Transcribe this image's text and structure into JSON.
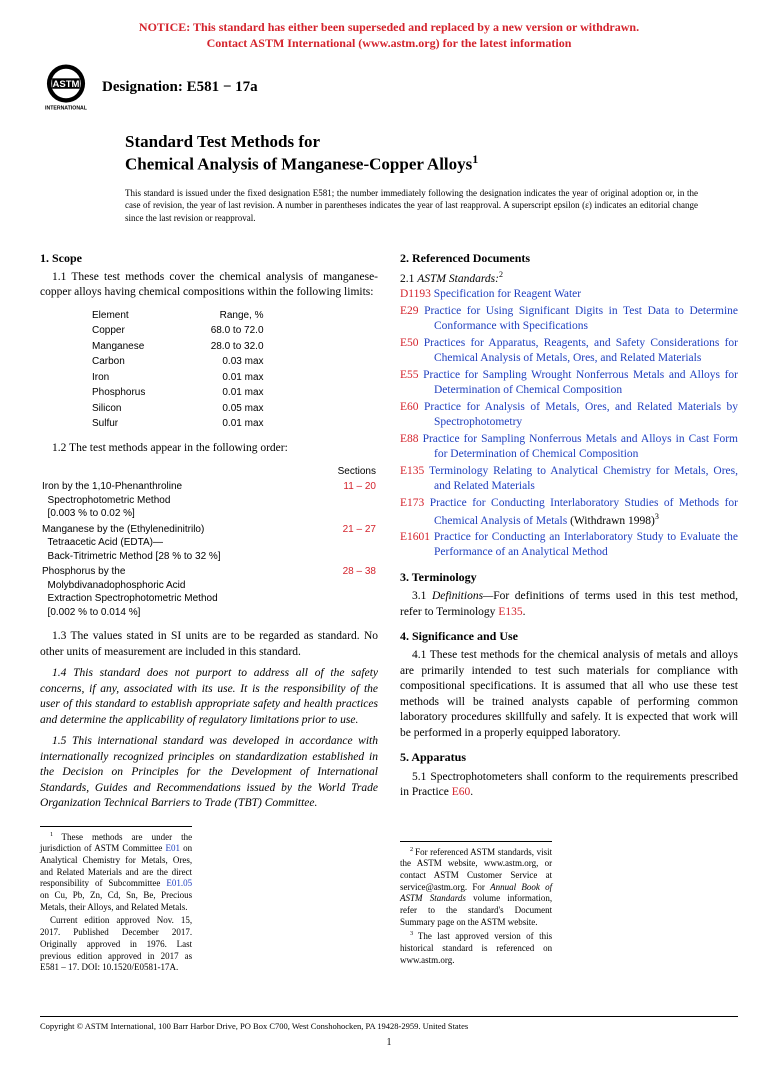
{
  "notice": {
    "line1": "NOTICE: This standard has either been superseded and replaced by a new version or withdrawn.",
    "line2": "Contact ASTM International (www.astm.org) for the latest information",
    "color": "#d4232c"
  },
  "logo": {
    "top_text": "ASTM",
    "bottom_text": "INTERNATIONAL"
  },
  "designation": "Designation: E581 − 17a",
  "title": {
    "line1": "Standard Test Methods for",
    "line2": "Chemical Analysis of Manganese-Copper Alloys",
    "sup": "1"
  },
  "issue_note": "This standard is issued under the fixed designation E581; the number immediately following the designation indicates the year of original adoption or, in the case of revision, the year of last revision. A number in parentheses indicates the year of last reapproval. A superscript epsilon (ε) indicates an editorial change since the last revision or reapproval.",
  "scope": {
    "head": "1. Scope",
    "p1_1": "1.1 These test methods cover the chemical analysis of manganese-copper alloys having chemical compositions within the following limits:",
    "elements_header": {
      "el": "Element",
      "range": "Range, %"
    },
    "elements": [
      {
        "el": "Copper",
        "range": "68.0 to 72.0"
      },
      {
        "el": "Manganese",
        "range": "28.0 to 32.0"
      },
      {
        "el": "Carbon",
        "range": "0.03 max"
      },
      {
        "el": "Iron",
        "range": "0.01 max"
      },
      {
        "el": "Phosphorus",
        "range": "0.01 max"
      },
      {
        "el": "Silicon",
        "range": "0.05 max"
      },
      {
        "el": "Sulfur",
        "range": "0.01 max"
      }
    ],
    "p1_2": "1.2 The test methods appear in the following order:",
    "methods_header": "Sections",
    "methods": [
      {
        "name": "Iron by the 1,10-Phenanthroline\nSpectrophotometric Method\n[0.003 % to 0.02 %]",
        "sec": "11 – 20"
      },
      {
        "name": "Manganese by the (Ethylenedinitrilo)\nTetraacetic Acid (EDTA)—\nBack-Titrimetric Method [28 % to 32 %]",
        "sec": "21 – 27"
      },
      {
        "name": "Phosphorus by the\nMolybdivanadophosphoric Acid\nExtraction Spectrophotometric Method\n[0.002 % to 0.014 %]",
        "sec": "28 – 38"
      }
    ],
    "method_sec_color": "#d4232c",
    "p1_3": "1.3 The values stated in SI units are to be regarded as standard. No other units of measurement are included in this standard.",
    "p1_4": "1.4 This standard does not purport to address all of the safety concerns, if any, associated with its use. It is the responsibility of the user of this standard to establish appropriate safety and health practices and determine the applicability of regulatory limitations prior to use.",
    "p1_5": "1.5 This international standard was developed in accordance with internationally recognized principles on standardization established in the Decision on Principles for the Development of International Standards, Guides and Recommendations issued by the World Trade Organization Technical Barriers to Trade (TBT) Committee."
  },
  "referenced": {
    "head": "2. Referenced Documents",
    "sub": "2.1 ",
    "sub_italic": "ASTM Standards:",
    "sup": "2",
    "items": [
      {
        "code": "D1193",
        "title": "Specification for Reagent Water"
      },
      {
        "code": "E29",
        "title": "Practice for Using Significant Digits in Test Data to Determine Conformance with Specifications"
      },
      {
        "code": "E50",
        "title": "Practices for Apparatus, Reagents, and Safety Considerations for Chemical Analysis of Metals, Ores, and Related Materials"
      },
      {
        "code": "E55",
        "title": "Practice for Sampling Wrought Nonferrous Metals and Alloys for Determination of Chemical Composition"
      },
      {
        "code": "E60",
        "title": "Practice for Analysis of Metals, Ores, and Related Materials by Spectrophotometry"
      },
      {
        "code": "E88",
        "title": "Practice for Sampling Nonferrous Metals and Alloys in Cast Form for Determination of Chemical Composition"
      },
      {
        "code": "E135",
        "title": "Terminology Relating to Analytical Chemistry for Metals, Ores, and Related Materials"
      },
      {
        "code": "E173",
        "title": "Practice for Conducting Interlaboratory Studies of Methods for Chemical Analysis of Metals",
        "suffix": " (Withdrawn 1998)",
        "suffix_sup": "3"
      },
      {
        "code": "E1601",
        "title": "Practice for Conducting an Interlaboratory Study to Evaluate the Performance of an Analytical Method"
      }
    ]
  },
  "terminology": {
    "head": "3. Terminology",
    "p3_1a": "3.1 ",
    "p3_1b": "Definitions—",
    "p3_1c": "For definitions of terms used in this test method, refer to Terminology ",
    "p3_1_link": "E135",
    "p3_1d": "."
  },
  "significance": {
    "head": "4. Significance and Use",
    "p4_1": "4.1 These test methods for the chemical analysis of metals and alloys are primarily intended to test such materials for compliance with compositional specifications. It is assumed that all who use these test methods will be trained analysts capable of performing common laboratory procedures skillfully and safely. It is expected that work will be performed in a properly equipped laboratory."
  },
  "apparatus": {
    "head": "5. Apparatus",
    "p5_1a": "5.1 Spectrophotometers shall conform to the requirements prescribed in Practice ",
    "p5_1_link": "E60",
    "p5_1b": "."
  },
  "footnotes_left": {
    "fn1a": "These methods are under the jurisdiction of ASTM Committee ",
    "fn1_link1": "E01",
    "fn1b": " on Analytical Chemistry for Metals, Ores, and Related Materials and are the direct responsibility of Subcommittee ",
    "fn1_link2": "E01.05",
    "fn1c": " on Cu, Pb, Zn, Cd, Sn, Be, Precious Metals, their Alloys, and Related Metals.",
    "fn1d": "Current edition approved Nov. 15, 2017. Published December 2017. Originally approved in 1976. Last previous edition approved in 2017 as E581 – 17. DOI: 10.1520/E0581-17A."
  },
  "footnotes_right": {
    "fn2a": "For referenced ASTM standards, visit the ASTM website, www.astm.org, or contact ASTM Customer Service at service@astm.org. For ",
    "fn2b": "Annual Book of ASTM Standards",
    "fn2c": " volume information, refer to the standard's Document Summary page on the ASTM website.",
    "fn3": "The last approved version of this historical standard is referenced on www.astm.org."
  },
  "copyright": "Copyright © ASTM International, 100 Barr Harbor Drive, PO Box C700, West Conshohocken, PA 19428-2959. United States",
  "page_number": "1",
  "colors": {
    "red": "#d4232c",
    "blue": "#2040c0",
    "black": "#000000"
  }
}
